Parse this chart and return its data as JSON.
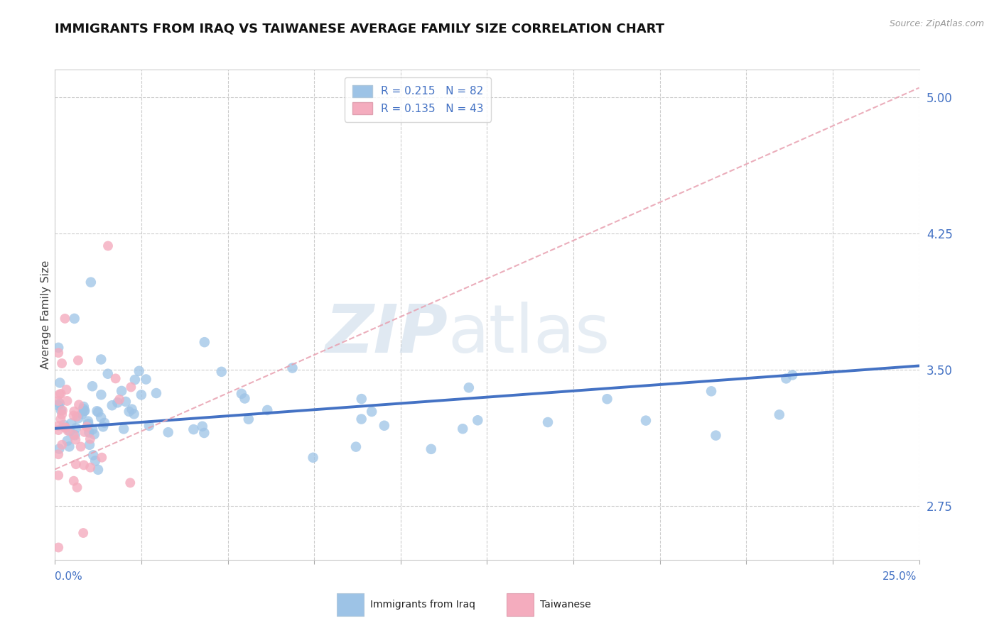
{
  "title": "IMMIGRANTS FROM IRAQ VS TAIWANESE AVERAGE FAMILY SIZE CORRELATION CHART",
  "source": "Source: ZipAtlas.com",
  "ylabel": "Average Family Size",
  "yticks": [
    2.75,
    3.5,
    4.25,
    5.0
  ],
  "xlim": [
    0.0,
    0.25
  ],
  "ylim": [
    2.45,
    5.15
  ],
  "blue_color": "#4472c4",
  "blue_scatter_color": "#9dc3e6",
  "pink_scatter_color": "#f4acbe",
  "pink_line_color": "#e8a0b0",
  "R_iraq": 0.215,
  "N_iraq": 82,
  "R_taiwan": 0.135,
  "N_taiwan": 43,
  "blue_line": [
    [
      0.0,
      3.175
    ],
    [
      0.25,
      3.52
    ]
  ],
  "pink_line": [
    [
      0.0,
      2.95
    ],
    [
      0.25,
      5.05
    ]
  ],
  "watermark_zip": "ZIP",
  "watermark_atlas": "atlas"
}
